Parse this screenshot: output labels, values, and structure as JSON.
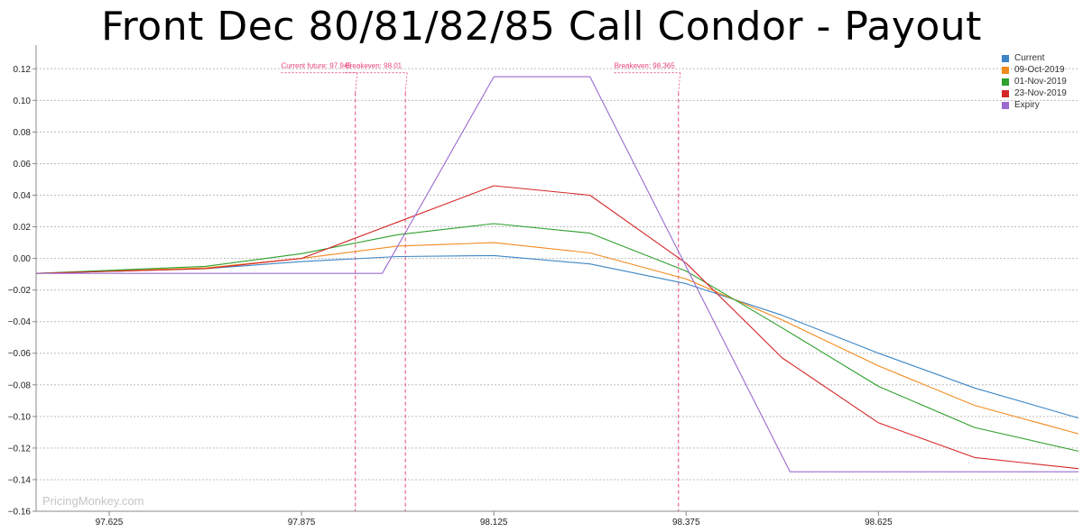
{
  "chart_data": {
    "type": "line",
    "title": "Front Dec 80/81/82/85 Call Condor - Payout",
    "watermark": "PricingMonkey.com",
    "xlim": [
      97.53,
      98.885
    ],
    "ylim": [
      -0.16,
      0.135
    ],
    "x_ticks": [
      97.625,
      97.875,
      98.125,
      98.375,
      98.625
    ],
    "x_tick_labels": [
      "97.625",
      "97.875",
      "98.125",
      "98.375",
      "98.625"
    ],
    "y_ticks": [
      0.12,
      0.1,
      0.08,
      0.06,
      0.04,
      0.02,
      0.0,
      -0.02,
      -0.04,
      -0.06,
      -0.08,
      -0.1,
      -0.12,
      -0.14,
      -0.16
    ],
    "y_tick_labels": [
      "0.12",
      "0.10",
      "0.08",
      "0.06",
      "0.04",
      "0.02",
      "0.00",
      "−0.02",
      "−0.04",
      "−0.06",
      "−0.08",
      "−0.10",
      "−0.12",
      "−0.14",
      "−0.16"
    ],
    "grid": true,
    "legend_position": "top-right",
    "series": [
      {
        "name": "Current",
        "color": "#3d86c6",
        "x": [
          97.53,
          97.75,
          97.875,
          98.0,
          98.125,
          98.25,
          98.375,
          98.5,
          98.625,
          98.75,
          98.885
        ],
        "y": [
          -0.0095,
          -0.0065,
          -0.002,
          0.0012,
          0.0018,
          -0.0035,
          -0.016,
          -0.036,
          -0.06,
          -0.082,
          -0.101
        ]
      },
      {
        "name": "09-Oct-2019",
        "color": "#f28b1e",
        "x": [
          97.53,
          97.75,
          97.875,
          98.0,
          98.125,
          98.25,
          98.375,
          98.5,
          98.625,
          98.75,
          98.885
        ],
        "y": [
          -0.0095,
          -0.006,
          0.0,
          0.0078,
          0.01,
          0.0035,
          -0.013,
          -0.039,
          -0.068,
          -0.093,
          -0.111
        ]
      },
      {
        "name": "01-Nov-2019",
        "color": "#2ea02c",
        "x": [
          97.53,
          97.75,
          97.875,
          98.0,
          98.125,
          98.25,
          98.375,
          98.5,
          98.625,
          98.75,
          98.885
        ],
        "y": [
          -0.0095,
          -0.005,
          0.003,
          0.015,
          0.022,
          0.016,
          -0.008,
          -0.044,
          -0.081,
          -0.107,
          -0.122
        ]
      },
      {
        "name": "23-Nov-2019",
        "color": "#d62728",
        "x": [
          97.53,
          97.75,
          97.875,
          98.0,
          98.125,
          98.25,
          98.375,
          98.5,
          98.625,
          98.75,
          98.885
        ],
        "y": [
          -0.0095,
          -0.0065,
          0.0,
          0.023,
          0.046,
          0.04,
          -0.003,
          -0.063,
          -0.104,
          -0.126,
          -0.133
        ]
      },
      {
        "name": "Expiry",
        "color": "#9b6bcf",
        "x": [
          97.53,
          97.75,
          97.98,
          98.125,
          98.25,
          98.51,
          98.885
        ],
        "y": [
          -0.0095,
          -0.0095,
          -0.0095,
          0.115,
          0.115,
          -0.135,
          -0.135
        ]
      }
    ],
    "annotations": [
      {
        "label": "Current future: 97.945",
        "x": 97.945
      },
      {
        "label": "Breakeven: 98.01",
        "x": 98.01
      },
      {
        "label": "Breakeven: 98.365",
        "x": 98.365
      }
    ],
    "annotation_color": "#e8457a"
  }
}
